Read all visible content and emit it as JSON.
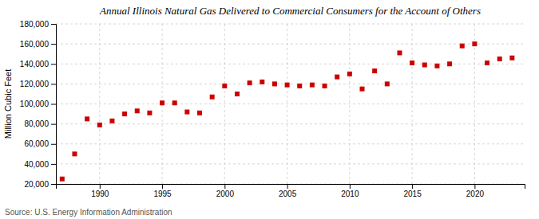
{
  "chart_data": {
    "type": "scatter",
    "title": "Annual Illinois Natural Gas Delivered to Commercial Consumers for the Account of Others",
    "ylabel": "Million Cubic Feet",
    "source": "Source: U.S. Energy Information Administration",
    "x": [
      1987,
      1988,
      1989,
      1990,
      1991,
      1992,
      1993,
      1994,
      1995,
      1996,
      1997,
      1998,
      1999,
      2000,
      2001,
      2002,
      2003,
      2004,
      2005,
      2006,
      2007,
      2008,
      2009,
      2010,
      2011,
      2012,
      2013,
      2014,
      2015,
      2016,
      2017,
      2018,
      2019,
      2020,
      2021,
      2022,
      2023
    ],
    "values": [
      25000,
      50000,
      85000,
      79000,
      83000,
      90000,
      93000,
      91000,
      101000,
      101000,
      92000,
      91000,
      107000,
      118000,
      110000,
      121000,
      122000,
      120000,
      119000,
      118000,
      119000,
      118000,
      127000,
      130000,
      115000,
      133000,
      120000,
      151000,
      141000,
      139000,
      138000,
      140000,
      158000,
      160000,
      141000,
      145000,
      146000
    ],
    "color": "#cc0000",
    "marker": "square",
    "xlim": [
      1986.5,
      2024
    ],
    "xticks": [
      1990,
      1995,
      2000,
      2005,
      2010,
      2015,
      2020
    ],
    "ylim": [
      20000,
      180000
    ],
    "yticks": [
      {
        "value": 20000,
        "label": "20,000"
      },
      {
        "value": 40000,
        "label": "40,000"
      },
      {
        "value": 60000,
        "label": "60,000"
      },
      {
        "value": 80000,
        "label": "80,000"
      },
      {
        "value": 100000,
        "label": "100,000"
      },
      {
        "value": 120000,
        "label": "120,000"
      },
      {
        "value": 140000,
        "label": "140,000"
      },
      {
        "value": 160000,
        "label": "160,000"
      },
      {
        "value": 180000,
        "label": "180,000"
      }
    ],
    "grid": true
  }
}
